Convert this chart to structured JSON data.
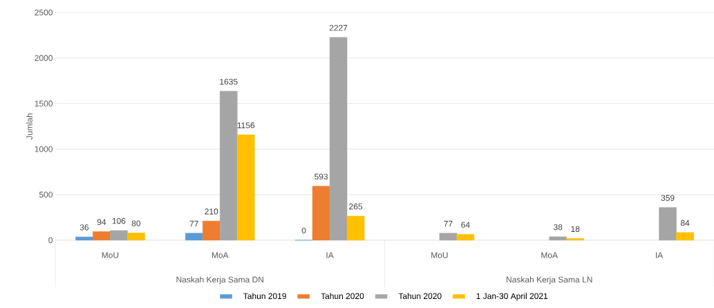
{
  "chart_data": {
    "type": "bar",
    "ylabel": "Jumlah",
    "categories": [
      "MoU",
      "MoA",
      "IA",
      "MoU",
      "MoA",
      "IA"
    ],
    "series": [
      {
        "name": "Tahun 2019",
        "color": "#5b9bd5",
        "values": [
          36,
          77,
          0,
          null,
          null,
          null
        ]
      },
      {
        "name": "Tahun 2020",
        "color": "#ed7d31",
        "values": [
          94,
          210,
          593,
          null,
          null,
          null
        ]
      },
      {
        "name": "Tahun 2020",
        "color": "#a5a5a5",
        "values": [
          106,
          1635,
          2227,
          77,
          38,
          359
        ]
      },
      {
        "name": "1 Jan-30 April 2021",
        "color": "#ffc000",
        "values": [
          80,
          1156,
          265,
          64,
          18,
          84
        ]
      }
    ],
    "annotations": [
      "Naskah Kerja  Sama DN",
      "Naskah Kerja  Sama LN"
    ],
    "ylim": [
      0,
      2500
    ],
    "yticks": [
      0,
      500,
      1000,
      1500,
      2000,
      2500
    ],
    "grid": "y",
    "legend": "bottom",
    "data_labels": true
  }
}
